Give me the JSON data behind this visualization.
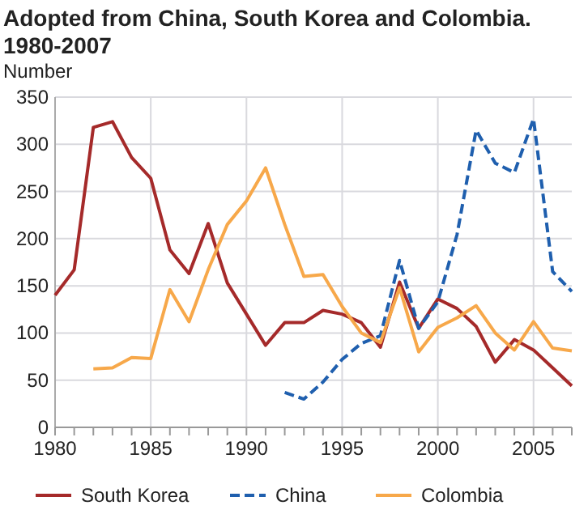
{
  "chart_data": {
    "type": "line",
    "title": "Adopted from China, South Korea and Colombia. 1980-2007",
    "ylabel": "Number",
    "x": [
      1980,
      1981,
      1982,
      1983,
      1984,
      1985,
      1986,
      1987,
      1988,
      1989,
      1990,
      1991,
      1992,
      1993,
      1994,
      1995,
      1996,
      1997,
      1998,
      1999,
      2000,
      2001,
      2002,
      2003,
      2004,
      2005,
      2006,
      2007
    ],
    "series": [
      {
        "name": "South Korea",
        "color": "#a52a2a",
        "line_style": "solid",
        "values": [
          140,
          167,
          318,
          324,
          286,
          264,
          188,
          163,
          216,
          153,
          120,
          87,
          111,
          111,
          124,
          120,
          111,
          85,
          154,
          105,
          136,
          126,
          107,
          69,
          93,
          82,
          63,
          44
        ]
      },
      {
        "name": "China",
        "color": "#1f5fae",
        "line_style": "dashed",
        "values": [
          null,
          null,
          null,
          null,
          null,
          null,
          null,
          null,
          null,
          null,
          null,
          null,
          37,
          30,
          48,
          72,
          89,
          97,
          177,
          105,
          133,
          204,
          315,
          280,
          270,
          327,
          165,
          144
        ]
      },
      {
        "name": "Colombia",
        "color": "#f7a84a",
        "line_style": "solid",
        "values": [
          null,
          null,
          62,
          63,
          74,
          73,
          146,
          112,
          167,
          215,
          240,
          275,
          215,
          160,
          162,
          128,
          100,
          90,
          148,
          80,
          106,
          116,
          129,
          100,
          82,
          112,
          84,
          81
        ]
      }
    ],
    "xlim": [
      1980,
      2007
    ],
    "xticks": [
      1980,
      {
        "value": 1981,
        "label": null
      },
      {
        "value": 1982,
        "label": null
      },
      {
        "value": 1983,
        "label": null
      },
      {
        "value": 1984,
        "label": null
      },
      1985,
      {
        "value": 1986,
        "label": null
      },
      {
        "value": 1987,
        "label": null
      },
      {
        "value": 1988,
        "label": null
      },
      {
        "value": 1989,
        "label": null
      },
      1990,
      {
        "value": 1991,
        "label": null
      },
      {
        "value": 1992,
        "label": null
      },
      {
        "value": 1993,
        "label": null
      },
      {
        "value": 1994,
        "label": null
      },
      1995,
      {
        "value": 1996,
        "label": null
      },
      {
        "value": 1997,
        "label": null
      },
      {
        "value": 1998,
        "label": null
      },
      {
        "value": 1999,
        "label": null
      },
      2000,
      {
        "value": 2001,
        "label": null
      },
      {
        "value": 2002,
        "label": null
      },
      {
        "value": 2003,
        "label": null
      },
      {
        "value": 2004,
        "label": null
      },
      2005,
      {
        "value": 2006,
        "label": null
      },
      {
        "value": 2007,
        "label": null
      }
    ],
    "ylim": [
      0,
      350
    ],
    "yticks": [
      0,
      50,
      100,
      150,
      200,
      250,
      300,
      350
    ],
    "grid": true,
    "legend": "bottom",
    "marker": "none"
  }
}
